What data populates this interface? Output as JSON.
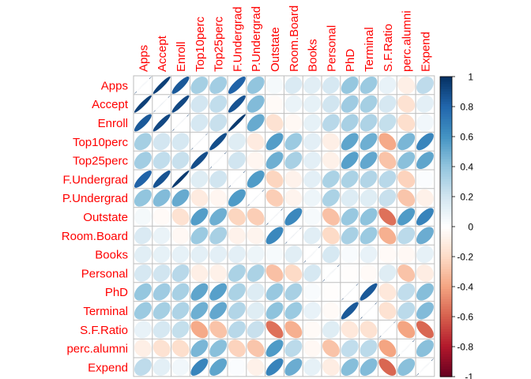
{
  "chart_data": {
    "type": "heatmap",
    "method": "ellipse",
    "layout": "full",
    "variables": [
      "Apps",
      "Accept",
      "Enroll",
      "Top10perc",
      "Top25perc",
      "F.Undergrad",
      "P.Undergrad",
      "Outstate",
      "Room.Board",
      "Books",
      "Personal",
      "PhD",
      "Terminal",
      "S.F.Ratio",
      "perc.alumni",
      "Expend"
    ],
    "matrix": [
      [
        1.0,
        0.94,
        0.85,
        0.34,
        0.35,
        0.81,
        0.4,
        0.05,
        0.16,
        0.13,
        0.18,
        0.39,
        0.37,
        0.1,
        -0.09,
        0.26
      ],
      [
        0.94,
        1.0,
        0.91,
        0.19,
        0.25,
        0.87,
        0.44,
        -0.03,
        0.09,
        0.11,
        0.2,
        0.36,
        0.34,
        0.18,
        -0.16,
        0.12
      ],
      [
        0.85,
        0.91,
        1.0,
        0.18,
        0.23,
        0.96,
        0.51,
        -0.16,
        -0.04,
        0.11,
        0.28,
        0.33,
        0.31,
        0.24,
        -0.18,
        0.06
      ],
      [
        0.34,
        0.19,
        0.18,
        1.0,
        0.89,
        0.14,
        -0.11,
        0.56,
        0.37,
        0.12,
        -0.09,
        0.53,
        0.49,
        -0.38,
        0.46,
        0.66
      ],
      [
        0.35,
        0.25,
        0.23,
        0.89,
        1.0,
        0.2,
        -0.05,
        0.49,
        0.33,
        0.12,
        -0.08,
        0.55,
        0.52,
        -0.29,
        0.42,
        0.53
      ],
      [
        0.81,
        0.87,
        0.96,
        0.14,
        0.2,
        1.0,
        0.57,
        -0.22,
        -0.07,
        0.12,
        0.32,
        0.32,
        0.3,
        0.28,
        -0.23,
        0.02
      ],
      [
        0.4,
        0.44,
        0.51,
        -0.11,
        -0.05,
        0.57,
        1.0,
        -0.25,
        -0.06,
        0.08,
        0.32,
        0.15,
        0.14,
        0.23,
        -0.28,
        -0.08
      ],
      [
        0.05,
        -0.03,
        -0.16,
        0.56,
        0.49,
        -0.22,
        -0.25,
        1.0,
        0.65,
        0.04,
        -0.3,
        0.38,
        0.41,
        -0.55,
        0.57,
        0.67
      ],
      [
        0.16,
        0.09,
        -0.04,
        0.37,
        0.33,
        -0.07,
        -0.06,
        0.65,
        1.0,
        0.13,
        -0.2,
        0.33,
        0.37,
        -0.36,
        0.27,
        0.5
      ],
      [
        0.13,
        0.11,
        0.11,
        0.12,
        0.12,
        0.12,
        0.08,
        0.04,
        0.13,
        1.0,
        0.18,
        0.03,
        0.1,
        -0.03,
        -0.04,
        0.11
      ],
      [
        0.18,
        0.2,
        0.28,
        -0.09,
        -0.08,
        0.32,
        0.32,
        -0.3,
        -0.2,
        0.18,
        1.0,
        -0.01,
        -0.03,
        0.14,
        -0.29,
        -0.1
      ],
      [
        0.39,
        0.36,
        0.33,
        0.53,
        0.55,
        0.32,
        0.15,
        0.38,
        0.33,
        0.03,
        -0.01,
        1.0,
        0.85,
        -0.13,
        0.25,
        0.43
      ],
      [
        0.37,
        0.34,
        0.31,
        0.49,
        0.52,
        0.3,
        0.14,
        0.41,
        0.37,
        0.1,
        -0.03,
        0.85,
        1.0,
        -0.16,
        0.27,
        0.44
      ],
      [
        0.1,
        0.18,
        0.24,
        -0.38,
        -0.29,
        0.28,
        0.23,
        -0.55,
        -0.36,
        -0.03,
        0.14,
        -0.13,
        -0.16,
        1.0,
        -0.4,
        -0.58
      ],
      [
        -0.09,
        -0.16,
        -0.18,
        0.46,
        0.42,
        -0.23,
        -0.28,
        0.57,
        0.27,
        -0.04,
        -0.29,
        0.25,
        0.27,
        -0.4,
        1.0,
        0.42
      ],
      [
        0.26,
        0.12,
        0.06,
        0.66,
        0.53,
        0.02,
        -0.08,
        0.67,
        0.5,
        0.11,
        -0.1,
        0.43,
        0.44,
        -0.58,
        0.42,
        1.0
      ]
    ],
    "colorbar": {
      "range": [
        -1,
        1
      ],
      "ticks": [
        "1",
        "0.8",
        "0.6",
        "0.4",
        "0.2",
        "0",
        "-0.2",
        "-0.4",
        "-0.6",
        "-0.8",
        "-1"
      ],
      "tick_values": [
        1,
        0.8,
        0.6,
        0.4,
        0.2,
        0,
        -0.2,
        -0.4,
        -0.6,
        -0.8,
        -1
      ],
      "colors_low_to_high": [
        "#67001F",
        "#B2182B",
        "#D6604D",
        "#F4A582",
        "#FDDBC7",
        "#FFFFFF",
        "#D1E5F0",
        "#92C5DE",
        "#4393C3",
        "#2166AC",
        "#053061"
      ]
    },
    "label_color": "#FF0000",
    "grid_color": "#BEBEBE",
    "title": "",
    "xlabel": "",
    "ylabel": "",
    "grid": true,
    "legend_placement": "right"
  }
}
